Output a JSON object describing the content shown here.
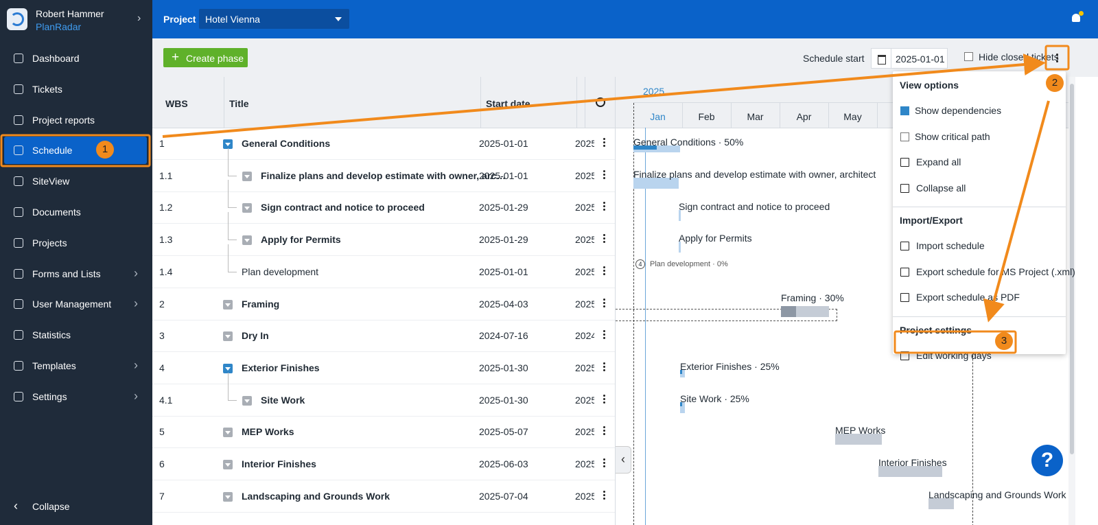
{
  "sidebar": {
    "user_name": "Robert Hammer",
    "brand": "PlanRadar",
    "nav": [
      "Dashboard",
      "Tickets",
      "Project reports",
      "Schedule",
      "SiteView",
      "Documents",
      "Projects",
      "Forms and Lists",
      "User Management",
      "Statistics",
      "Templates",
      "Settings"
    ],
    "collapse": "Collapse"
  },
  "topbar": {
    "project_label": "Project",
    "project": "Hotel Vienna"
  },
  "toolbar": {
    "create_button": "Create phase",
    "schedule_start_label": "Schedule start",
    "schedule_start": "2025-01-01",
    "hide_closed": "Hide closed tickets"
  },
  "table": {
    "columns": [
      "WBS",
      "Title",
      "Start date"
    ],
    "rows": [
      [
        "1",
        "General Conditions",
        "2025-01-01",
        "2025"
      ],
      [
        "1.1",
        "Finalize plans and develop estimate with owner, arc…",
        "2025-01-01",
        "2025"
      ],
      [
        "1.2",
        "Sign contract and notice to proceed",
        "2025-01-29",
        "2025"
      ],
      [
        "1.3",
        "Apply for Permits",
        "2025-01-29",
        "2025"
      ],
      [
        "1.4",
        "Plan development",
        "2025-01-01",
        "2025"
      ],
      [
        "2",
        "Framing",
        "2025-04-03",
        "2025"
      ],
      [
        "3",
        "Dry In",
        "2024-07-16",
        "2024"
      ],
      [
        "4",
        "Exterior Finishes",
        "2025-01-30",
        "2025"
      ],
      [
        "4.1",
        "Site Work",
        "2025-01-30",
        "2025"
      ],
      [
        "5",
        "MEP Works",
        "2025-05-07",
        "2025"
      ],
      [
        "6",
        "Interior Finishes",
        "2025-06-03",
        "2025"
      ],
      [
        "7",
        "Landscaping and Grounds Work",
        "2025-07-04",
        "2025"
      ]
    ]
  },
  "gantt": {
    "year": "2025",
    "months": [
      "Jan",
      "Feb",
      "Mar",
      "Apr",
      "May"
    ],
    "bar_labels": [
      "General Conditions · 50%",
      "Finalize plans and develop estimate with owner, architect",
      "Sign contract and notice to proceed",
      "Apply for Permits",
      "Plan development · 0%",
      "Framing · 30%",
      "Exterior Finishes · 25%",
      "Site Work · 25%",
      "MEP Works",
      "Interior Finishes",
      "Landscaping and Grounds Work"
    ],
    "milestone": "4"
  },
  "menu": {
    "sections": [
      {
        "title": "View options",
        "items": [
          "Show dependencies",
          "Show critical path",
          "Expand all",
          "Collapse all"
        ]
      },
      {
        "title": "Import/Export",
        "items": [
          "Import schedule",
          "Export schedule for MS Project (.xml)",
          "Export schedule as PDF"
        ]
      },
      {
        "title": "Project settings",
        "items": [
          "Edit working days"
        ]
      }
    ]
  },
  "annotations": [
    "1",
    "2",
    "3"
  ],
  "help": "?"
}
